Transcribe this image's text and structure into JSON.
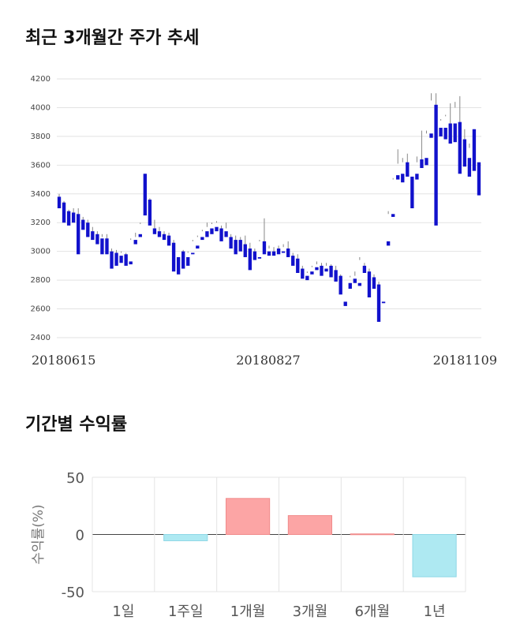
{
  "titles": {
    "price_trend": "최근 3개월간 주가 추세",
    "period_returns": "기간별 수익률"
  },
  "chart_data": [
    {
      "type": "candlestick",
      "title": "최근 3개월간 주가 추세",
      "ylim": [
        2400,
        4200
      ],
      "yticks": [
        2400,
        2600,
        2800,
        3000,
        3200,
        3400,
        3600,
        3800,
        4000,
        4200
      ],
      "x_labels": [
        "20180615",
        "20180827",
        "20181109"
      ],
      "grid": true,
      "up_color": "#dd1111",
      "down_color": "#1111cc",
      "candles": [
        [
          3380,
          3400,
          3350,
          3300
        ],
        [
          3340,
          3350,
          3240,
          3200
        ],
        [
          3280,
          3290,
          3250,
          3180
        ],
        [
          3270,
          3300,
          3240,
          3200
        ],
        [
          3260,
          3300,
          3200,
          2980
        ],
        [
          3220,
          3240,
          3200,
          3150
        ],
        [
          3200,
          3220,
          3140,
          3100
        ],
        [
          3140,
          3170,
          3110,
          3080
        ],
        [
          3120,
          3140,
          3100,
          3050
        ],
        [
          3090,
          3120,
          3100,
          2980
        ],
        [
          3090,
          3120,
          3000,
          2980
        ],
        [
          3000,
          3020,
          2990,
          2880
        ],
        [
          2990,
          3010,
          2980,
          2900
        ],
        [
          2970,
          3000,
          2990,
          2920
        ],
        [
          2980,
          2990,
          2960,
          2900
        ],
        [
          2930,
          3090,
          3080,
          2910
        ],
        [
          3080,
          3130,
          3100,
          3050
        ],
        [
          3120,
          3200,
          3190,
          3100
        ],
        [
          3540,
          3540,
          3280,
          3250
        ],
        [
          3360,
          3370,
          3200,
          3180
        ],
        [
          3160,
          3220,
          3140,
          3120
        ],
        [
          3140,
          3170,
          3120,
          3100
        ],
        [
          3120,
          3140,
          3110,
          3080
        ],
        [
          3110,
          3130,
          3080,
          3040
        ],
        [
          3060,
          3080,
          2920,
          2860
        ],
        [
          2960,
          3000,
          3000,
          2840
        ],
        [
          3000,
          3010,
          2960,
          2880
        ],
        [
          2960,
          3000,
          2990,
          2900
        ],
        [
          2990,
          3080,
          3070,
          2980
        ],
        [
          3040,
          3110,
          3100,
          3020
        ],
        [
          3100,
          3150,
          3140,
          3080
        ],
        [
          3140,
          3200,
          3170,
          3100
        ],
        [
          3160,
          3200,
          3190,
          3120
        ],
        [
          3170,
          3210,
          3200,
          3140
        ],
        [
          3160,
          3180,
          3090,
          3070
        ],
        [
          3140,
          3200,
          3160,
          3100
        ],
        [
          3100,
          3120,
          3080,
          3020
        ],
        [
          3080,
          3110,
          3060,
          2980
        ],
        [
          3080,
          3100,
          3050,
          3000
        ],
        [
          3050,
          3110,
          3030,
          2960
        ],
        [
          3020,
          3060,
          3000,
          2870
        ],
        [
          3000,
          3020,
          2980,
          2940
        ],
        [
          2960,
          3080,
          3070,
          2950
        ],
        [
          3070,
          3230,
          3000,
          2980
        ],
        [
          3000,
          3040,
          3020,
          2970
        ],
        [
          3000,
          3030,
          2990,
          2970
        ],
        [
          3020,
          3040,
          3010,
          2980
        ],
        [
          3000,
          3050,
          3030,
          2990
        ],
        [
          3020,
          3070,
          2990,
          2960
        ],
        [
          2970,
          2990,
          2950,
          2900
        ],
        [
          2950,
          2980,
          2900,
          2850
        ],
        [
          2880,
          2900,
          2830,
          2810
        ],
        [
          2830,
          2860,
          2850,
          2800
        ],
        [
          2860,
          2900,
          2890,
          2840
        ],
        [
          2890,
          2930,
          2910,
          2870
        ],
        [
          2900,
          2920,
          2870,
          2830
        ],
        [
          2880,
          2920,
          2900,
          2860
        ],
        [
          2900,
          2910,
          2870,
          2820
        ],
        [
          2870,
          2900,
          2830,
          2790
        ],
        [
          2830,
          2840,
          2760,
          2700
        ],
        [
          2650,
          2800,
          2800,
          2620
        ],
        [
          2780,
          2830,
          2820,
          2740
        ],
        [
          2810,
          2860,
          2830,
          2780
        ],
        [
          2780,
          2960,
          2940,
          2760
        ],
        [
          2900,
          2920,
          2870,
          2850
        ],
        [
          2860,
          2880,
          2830,
          2680
        ],
        [
          2820,
          2840,
          2770,
          2740
        ],
        [
          2770,
          2790,
          2750,
          2510
        ],
        [
          2650,
          3100,
          3100,
          2640
        ],
        [
          3070,
          3280,
          3260,
          3040
        ],
        [
          3260,
          3510,
          3500,
          3240
        ],
        [
          3530,
          3710,
          3610,
          3500
        ],
        [
          3540,
          3650,
          3620,
          3480
        ],
        [
          3620,
          3680,
          3560,
          3520
        ],
        [
          3520,
          3540,
          3540,
          3300
        ],
        [
          3540,
          3660,
          3620,
          3500
        ],
        [
          3640,
          3840,
          3620,
          3580
        ],
        [
          3650,
          3840,
          3820,
          3600
        ],
        [
          3820,
          4100,
          4050,
          3790
        ],
        [
          4020,
          4100,
          3860,
          3180
        ],
        [
          3860,
          3920,
          3910,
          3800
        ],
        [
          3860,
          3950,
          3940,
          3780
        ],
        [
          3890,
          4030,
          3820,
          3750
        ],
        [
          3890,
          4040,
          4000,
          3760
        ],
        [
          3900,
          4080,
          3780,
          3540
        ],
        [
          3780,
          3850,
          3740,
          3590
        ],
        [
          3650,
          3750,
          3720,
          3520
        ],
        [
          3850,
          3850,
          3620,
          3560
        ],
        [
          3620,
          3710,
          3710,
          3390
        ]
      ]
    },
    {
      "type": "bar",
      "title": "기간별 수익률",
      "ylabel": "수익률(%)",
      "ylim": [
        -50,
        50
      ],
      "yticks": [
        -50,
        0,
        50
      ],
      "categories": [
        "1일",
        "1주일",
        "1개월",
        "3개월",
        "6개월",
        "1년"
      ],
      "values": [
        0,
        -5.5,
        31.5,
        16.5,
        0.5,
        -37
      ],
      "positive_color": "#fca5a5",
      "negative_color": "#aee9f2",
      "grid": true
    }
  ]
}
